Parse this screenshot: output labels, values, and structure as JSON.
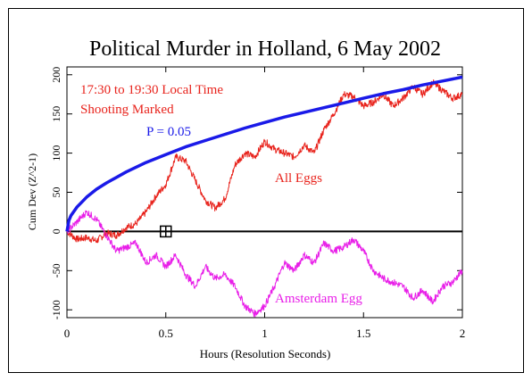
{
  "chart_data": {
    "type": "line",
    "title": "Political Murder in Holland, 6 May 2002",
    "xlabel": "Hours (Resolution Seconds)",
    "ylabel": "Cum Dev (Z^2-1)",
    "xlim": [
      0,
      2
    ],
    "ylim": [
      -110,
      210
    ],
    "x_ticks": [
      0,
      0.5,
      1,
      1.5,
      2
    ],
    "x_tick_labels": [
      "0",
      "0.5",
      "1",
      "1.5",
      "2"
    ],
    "y_ticks": [
      -100,
      -50,
      0,
      50,
      100,
      150,
      200
    ],
    "y_tick_labels": [
      "-100",
      "-50",
      "0",
      "50",
      "100",
      "150",
      "200"
    ],
    "grid": false,
    "annotations": {
      "time_range": "17:30 to 19:30 Local Time",
      "marker_note": "Shooting Marked",
      "probability": "P = 0.05",
      "series_label_all": "All Eggs",
      "series_label_amsterdam": "Amsterdam Egg"
    },
    "event_marker": {
      "x": 0.5,
      "y": 0
    },
    "series": [
      {
        "name": "All Eggs",
        "color": "#e8231c",
        "x": [
          0,
          0.05,
          0.1,
          0.15,
          0.2,
          0.25,
          0.3,
          0.35,
          0.4,
          0.45,
          0.5,
          0.55,
          0.6,
          0.65,
          0.7,
          0.75,
          0.8,
          0.85,
          0.9,
          0.95,
          1.0,
          1.05,
          1.1,
          1.15,
          1.2,
          1.25,
          1.3,
          1.35,
          1.4,
          1.45,
          1.5,
          1.55,
          1.6,
          1.65,
          1.7,
          1.75,
          1.8,
          1.85,
          1.9,
          1.95,
          2.0
        ],
        "values": [
          0,
          -10,
          -8,
          -12,
          -2,
          -5,
          5,
          10,
          25,
          45,
          60,
          95,
          90,
          65,
          40,
          30,
          42,
          85,
          100,
          95,
          115,
          105,
          100,
          95,
          110,
          100,
          130,
          150,
          175,
          172,
          160,
          165,
          175,
          160,
          170,
          185,
          175,
          190,
          180,
          170,
          175
        ]
      },
      {
        "name": "Amsterdam Egg",
        "color": "#e81ee8",
        "x": [
          0,
          0.05,
          0.1,
          0.15,
          0.2,
          0.25,
          0.3,
          0.35,
          0.4,
          0.45,
          0.5,
          0.55,
          0.6,
          0.65,
          0.7,
          0.75,
          0.8,
          0.85,
          0.9,
          0.95,
          1.0,
          1.05,
          1.1,
          1.15,
          1.2,
          1.25,
          1.3,
          1.35,
          1.4,
          1.45,
          1.5,
          1.55,
          1.6,
          1.65,
          1.7,
          1.75,
          1.8,
          1.85,
          1.9,
          1.95,
          2.0
        ],
        "values": [
          0,
          12,
          25,
          15,
          -5,
          -25,
          -20,
          -15,
          -40,
          -30,
          -45,
          -30,
          -55,
          -70,
          -45,
          -60,
          -55,
          -70,
          -95,
          -105,
          -95,
          -70,
          -40,
          -50,
          -30,
          -40,
          -15,
          -25,
          -20,
          -10,
          -25,
          -50,
          -60,
          -65,
          -70,
          -85,
          -75,
          -90,
          -70,
          -65,
          -50
        ]
      },
      {
        "name": "P = 0.05",
        "color": "#1a1ae8",
        "x": [
          0,
          0.01,
          0.02,
          0.05,
          0.1,
          0.15,
          0.2,
          0.3,
          0.4,
          0.5,
          0.6,
          0.7,
          0.8,
          0.9,
          1.0,
          1.1,
          1.2,
          1.3,
          1.4,
          1.5,
          1.6,
          1.7,
          1.8,
          1.9,
          2.0
        ],
        "values": [
          0,
          14,
          20,
          31,
          44,
          54,
          62,
          76,
          88,
          98,
          108,
          116,
          124,
          132,
          139,
          146,
          152,
          158,
          164,
          170,
          176,
          181,
          187,
          192,
          197
        ]
      }
    ]
  }
}
